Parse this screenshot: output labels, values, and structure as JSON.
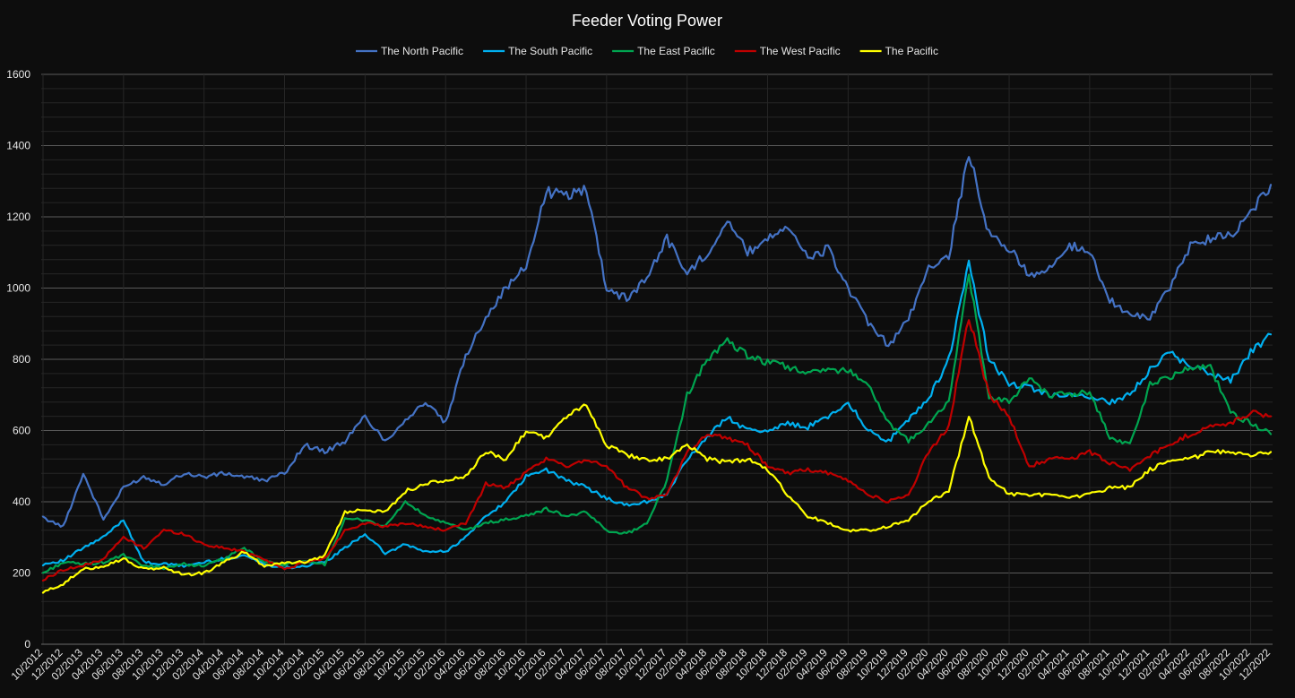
{
  "chart_data": {
    "type": "line",
    "title": "Feeder Voting Power",
    "xlabel": "",
    "ylabel": "",
    "ylim": [
      0,
      1600
    ],
    "yticks": [
      0,
      200,
      400,
      600,
      800,
      1000,
      1200,
      1400,
      1600
    ],
    "grid": true,
    "legend_position": "top-center",
    "background": "#0d0d0d",
    "x": [
      "10/2012",
      "12/2012",
      "02/2013",
      "04/2013",
      "06/2013",
      "08/2013",
      "10/2013",
      "12/2013",
      "02/2014",
      "04/2014",
      "06/2014",
      "08/2014",
      "10/2014",
      "12/2014",
      "02/2015",
      "04/2015",
      "06/2015",
      "08/2015",
      "10/2015",
      "12/2015",
      "02/2016",
      "04/2016",
      "06/2016",
      "08/2016",
      "10/2016",
      "12/2016",
      "02/2017",
      "04/2017",
      "06/2017",
      "08/2017",
      "10/2017",
      "12/2017",
      "02/2018",
      "04/2018",
      "06/2018",
      "08/2018",
      "10/2018",
      "12/2018",
      "02/2019",
      "04/2019",
      "06/2019",
      "08/2019",
      "10/2019",
      "12/2019",
      "02/2020",
      "04/2020",
      "06/2020",
      "08/2020",
      "10/2020",
      "12/2020",
      "02/2021",
      "04/2021",
      "06/2021",
      "08/2021",
      "10/2021",
      "12/2021",
      "02/2022",
      "04/2022",
      "06/2022",
      "08/2022",
      "10/2022",
      "12/2022"
    ],
    "series": [
      {
        "name": "The North Pacific",
        "color": "#4472c4",
        "values": [
          355,
          330,
          480,
          350,
          440,
          470,
          450,
          480,
          470,
          480,
          470,
          460,
          480,
          560,
          540,
          570,
          640,
          570,
          630,
          680,
          620,
          810,
          920,
          1000,
          1060,
          1270,
          1260,
          1280,
          1000,
          970,
          1030,
          1140,
          1040,
          1100,
          1190,
          1100,
          1140,
          1180,
          1080,
          1110,
          1000,
          900,
          840,
          910,
          1060,
          1090,
          1380,
          1150,
          1110,
          1040,
          1050,
          1120,
          1100,
          970,
          920,
          920,
          1000,
          1120,
          1140,
          1150,
          1210,
          1290
        ]
      },
      {
        "name": "The South Pacific",
        "color": "#00b0f0",
        "values": [
          225,
          235,
          270,
          300,
          350,
          230,
          225,
          220,
          230,
          240,
          250,
          225,
          215,
          220,
          230,
          270,
          310,
          255,
          280,
          260,
          260,
          300,
          360,
          400,
          470,
          490,
          460,
          440,
          410,
          390,
          400,
          420,
          520,
          580,
          640,
          600,
          600,
          620,
          610,
          640,
          680,
          600,
          570,
          630,
          690,
          800,
          1070,
          800,
          730,
          720,
          700,
          700,
          690,
          680,
          700,
          770,
          820,
          780,
          760,
          740,
          820,
          870
        ]
      },
      {
        "name": "The East Pacific",
        "color": "#00a550",
        "values": [
          200,
          230,
          225,
          230,
          250,
          220,
          215,
          225,
          220,
          240,
          270,
          230,
          225,
          230,
          225,
          350,
          350,
          330,
          400,
          360,
          340,
          320,
          340,
          350,
          360,
          380,
          360,
          370,
          320,
          310,
          340,
          460,
          700,
          800,
          850,
          810,
          790,
          780,
          760,
          770,
          770,
          730,
          620,
          570,
          620,
          680,
          1040,
          690,
          680,
          750,
          700,
          700,
          710,
          580,
          560,
          730,
          750,
          780,
          780,
          650,
          620,
          590
        ]
      },
      {
        "name": "The West Pacific",
        "color": "#c00000",
        "values": [
          180,
          210,
          220,
          240,
          300,
          270,
          320,
          310,
          280,
          270,
          260,
          240,
          210,
          230,
          240,
          320,
          340,
          330,
          340,
          330,
          320,
          340,
          450,
          440,
          480,
          520,
          500,
          520,
          500,
          440,
          410,
          420,
          540,
          590,
          580,
          560,
          500,
          480,
          490,
          480,
          460,
          420,
          400,
          420,
          540,
          610,
          920,
          700,
          640,
          500,
          520,
          520,
          540,
          510,
          490,
          530,
          560,
          590,
          610,
          620,
          650,
          640
        ]
      },
      {
        "name": "The Pacific",
        "color": "#ffff00",
        "values": [
          145,
          170,
          210,
          220,
          240,
          210,
          215,
          195,
          200,
          230,
          260,
          220,
          230,
          230,
          250,
          370,
          380,
          370,
          430,
          450,
          460,
          470,
          540,
          520,
          600,
          580,
          640,
          670,
          560,
          530,
          520,
          520,
          560,
          520,
          510,
          520,
          490,
          420,
          360,
          340,
          320,
          320,
          330,
          350,
          400,
          430,
          640,
          470,
          420,
          420,
          420,
          410,
          420,
          440,
          440,
          490,
          520,
          520,
          540,
          540,
          530,
          540
        ]
      }
    ]
  }
}
